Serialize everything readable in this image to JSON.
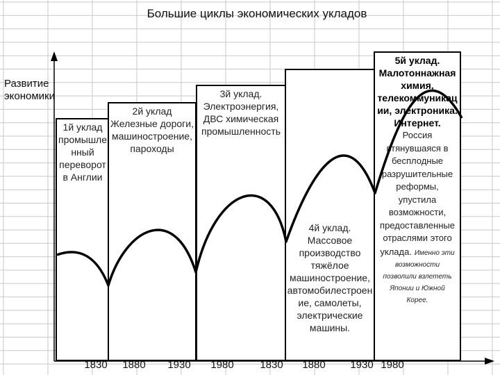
{
  "title": "Большие циклы экономических укладов",
  "y_axis_label": "Развитие экономики",
  "x_axis_years": [
    "1830",
    "1880",
    "1930",
    "1980",
    "1830",
    "1880",
    "1930",
    "1980"
  ],
  "boxes": [
    {
      "id": "uklad-1",
      "lines": [
        "1й уклад",
        "промышле",
        "нный",
        "переворот",
        "в Англии"
      ]
    },
    {
      "id": "uklad-2",
      "lines": [
        "2й уклад",
        "Железные дороги,",
        "машиностроение,",
        "пароходы"
      ]
    },
    {
      "id": "uklad-3",
      "lines": [
        "3й уклад.",
        "Электроэнергия,",
        "ДВС химическая",
        "промышленность"
      ]
    },
    {
      "id": "uklad-4",
      "lines": [
        "4й уклад.",
        "Массовое",
        "производство",
        "тяжёлое",
        "машиностроение,",
        "автомобилестроен",
        "ие, самолеты,",
        "электрические",
        "машины."
      ]
    },
    {
      "id": "uklad-5",
      "head_lines": [
        "5й уклад.",
        "Малотоннажная",
        "химия,",
        "телекоммуникац",
        "ии, электроника.",
        "Интернет."
      ],
      "body_lines": [
        "Россия",
        "втянувшаяся в",
        "бесплодные",
        "разрушительные",
        "реформы,",
        "упустила",
        "возможности,",
        "предоставленные",
        "отраслями этого",
        "уклада."
      ],
      "note_lines": [
        "Именно эти",
        "возможности",
        "позволили взлететь",
        "Японии и Южной",
        "Корее."
      ]
    }
  ],
  "colors": {
    "grid": "#c8c8c8",
    "line": "#000000",
    "box_border": "#000000"
  }
}
